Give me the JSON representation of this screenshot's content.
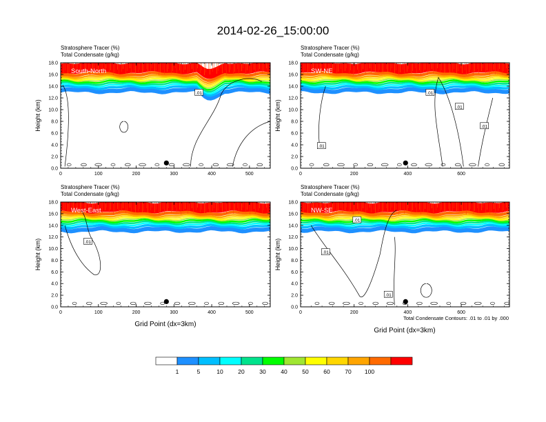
{
  "title": "2014-02-26_15:00:00",
  "panel_header": {
    "line1": "Stratosphere Tracer   (%)",
    "line2": "Total Condensate   (g/kg)"
  },
  "ylabel": "Height (km)",
  "xlabel": "Grid Point (dx=3km)",
  "contour_note": "Total Condensate Contours: .01 to .01 by .000",
  "contour_label": ".01",
  "colorbar": {
    "labels": [
      "1",
      "5",
      "10",
      "20",
      "30",
      "40",
      "50",
      "60",
      "70",
      "100"
    ],
    "colors": [
      "#ffffff",
      "#1e90ff",
      "#00bfff",
      "#00ffff",
      "#00e38c",
      "#00ff00",
      "#a0e632",
      "#ffff00",
      "#ffd700",
      "#ffa500",
      "#ff6a00",
      "#ff0000"
    ]
  },
  "chart_data": [
    {
      "type": "heatmap",
      "name": "South-North",
      "ylim": [
        0,
        18
      ],
      "xlim": [
        0,
        555
      ],
      "y_ticks": [
        0,
        2,
        4,
        6,
        8,
        10,
        12,
        14,
        16,
        18
      ],
      "x_ticks": [
        0,
        100,
        200,
        300,
        400,
        500
      ],
      "tropopause_km": 14.5,
      "dot_x": 280
    },
    {
      "type": "heatmap",
      "name": "SW-NE",
      "ylim": [
        0,
        18
      ],
      "xlim": [
        0,
        780
      ],
      "y_ticks": [
        0,
        2,
        4,
        6,
        8,
        10,
        12,
        14,
        16,
        18
      ],
      "x_ticks": [
        0,
        200,
        400,
        600
      ],
      "tropopause_km": 14.5,
      "dot_x": 392
    },
    {
      "type": "heatmap",
      "name": "West-East",
      "ylim": [
        0,
        18
      ],
      "xlim": [
        0,
        555
      ],
      "y_ticks": [
        0,
        2,
        4,
        6,
        8,
        10,
        12,
        14,
        16,
        18
      ],
      "x_ticks": [
        0,
        100,
        200,
        300,
        400,
        500
      ],
      "tropopause_km": 14.5,
      "dot_x": 280
    },
    {
      "type": "heatmap",
      "name": "NW-SE",
      "ylim": [
        0,
        18
      ],
      "xlim": [
        0,
        780
      ],
      "y_ticks": [
        0,
        2,
        4,
        6,
        8,
        10,
        12,
        14,
        16,
        18
      ],
      "x_ticks": [
        0,
        200,
        400,
        600
      ],
      "tropopause_km": 14.5,
      "dot_x": 392
    }
  ]
}
